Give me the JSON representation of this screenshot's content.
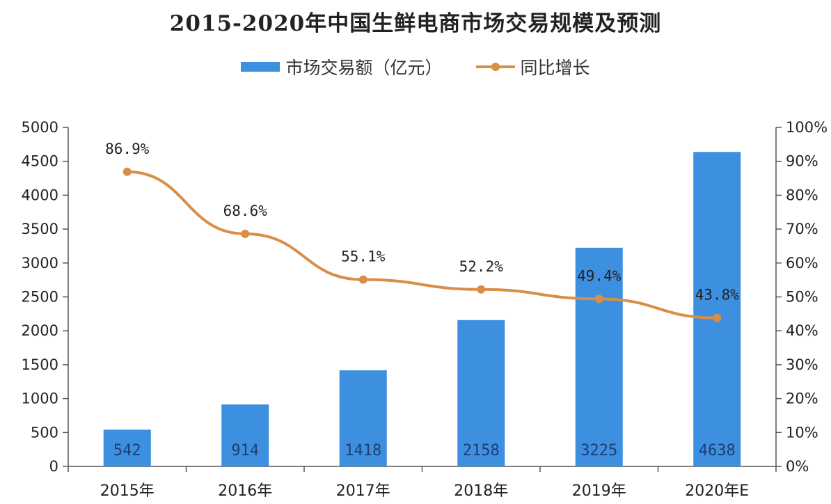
{
  "chart_data": {
    "type": "bar",
    "title": "2015-2020年中国生鲜电商市场交易规模及预测",
    "categories": [
      "2015年",
      "2016年",
      "2017年",
      "2018年",
      "2019年",
      "2020年E"
    ],
    "series": [
      {
        "name": "市场交易额（亿元）",
        "type": "bar",
        "axis": "left",
        "color": "#3d8fe0",
        "values": [
          542,
          914,
          1418,
          2158,
          3225,
          4638
        ],
        "labels": [
          "542",
          "914",
          "1418",
          "2158",
          "3225",
          "4638"
        ]
      },
      {
        "name": "同比增长",
        "type": "line",
        "axis": "right",
        "color": "#d98e48",
        "values": [
          86.9,
          68.6,
          55.1,
          52.2,
          49.4,
          43.8
        ],
        "labels": [
          "86.9%",
          "68.6%",
          "55.1%",
          "52.2%",
          "49.4%",
          "43.8%"
        ]
      }
    ],
    "y_left": {
      "ylim": [
        0,
        5000
      ],
      "ticks": [
        0,
        500,
        1000,
        1500,
        2000,
        2500,
        3000,
        3500,
        4000,
        4500,
        5000
      ],
      "tick_labels": [
        "0",
        "500",
        "1000",
        "1500",
        "2000",
        "2500",
        "3000",
        "3500",
        "4000",
        "4500",
        "5000"
      ]
    },
    "y_right": {
      "ylim": [
        0,
        100
      ],
      "ticks": [
        0,
        10,
        20,
        30,
        40,
        50,
        60,
        70,
        80,
        90,
        100
      ],
      "tick_labels": [
        "0%",
        "10%",
        "20%",
        "30%",
        "40%",
        "50%",
        "60%",
        "70%",
        "80%",
        "90%",
        "100%"
      ]
    },
    "xlabel": "",
    "ylabel": "",
    "grid": false,
    "legend_position": "top-center"
  }
}
